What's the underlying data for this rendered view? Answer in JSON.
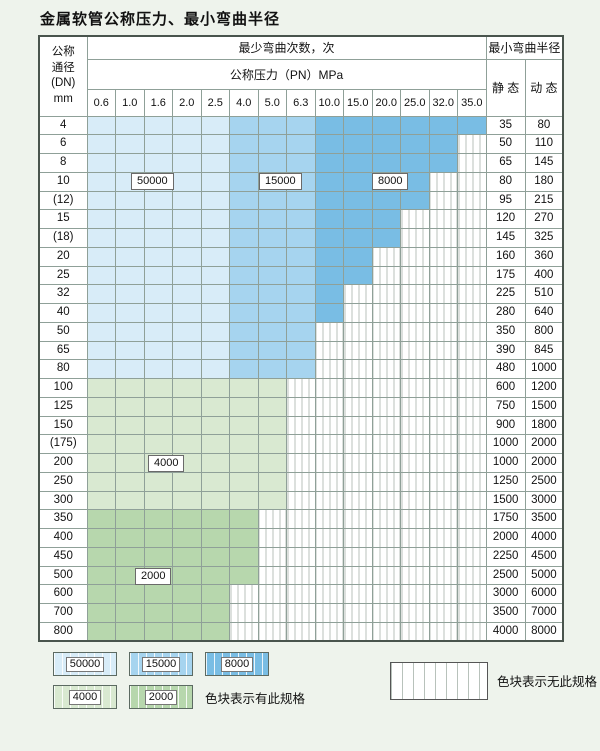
{
  "title": "金属软管公称压力、最小弯曲半径",
  "header": {
    "dn_lines": [
      "公称",
      "通径",
      "(DN)",
      "mm"
    ],
    "bend_times_label": "最少弯曲次数，次",
    "pn_label": "公称压力（PN）MPa",
    "radius_label": "最小弯曲半径",
    "static_label": "静 态",
    "dynamic_label": "动 态"
  },
  "chart_data": {
    "type": "table",
    "pressures": [
      "0.6",
      "1.0",
      "1.6",
      "2.0",
      "2.5",
      "4.0",
      "5.0",
      "6.3",
      "10.0",
      "15.0",
      "20.0",
      "25.0",
      "32.0",
      "35.0"
    ],
    "zone_colors": {
      "50000": "#d8ecf8",
      "15000": "#a6d4ef",
      "8000": "#79bde4",
      "4000": "#d9e9d1",
      "2000": "#b7d7ad"
    },
    "blue_column_zones": [
      {
        "zone": "50000",
        "from_col": 0,
        "to_col": 4
      },
      {
        "zone": "15000",
        "from_col": 5,
        "to_col": 7
      },
      {
        "zone": "8000",
        "from_col": 8,
        "to_col": 13
      }
    ],
    "zone_labels": [
      {
        "text": "50000",
        "anchor_row": "10",
        "anchor_col": "1.6"
      },
      {
        "text": "15000",
        "anchor_row": "10",
        "anchor_col": "5.0"
      },
      {
        "text": "8000",
        "anchor_row": "10",
        "anchor_col": "15.0"
      },
      {
        "text": "4000",
        "anchor_row": "200",
        "anchor_col": "1.6"
      },
      {
        "text": "2000",
        "anchor_row": "500",
        "anchor_col": "1.6"
      }
    ],
    "rows": [
      {
        "dn": "4",
        "band": "blue",
        "colored_cols": 14,
        "static": "35",
        "dynamic": "80"
      },
      {
        "dn": "6",
        "band": "blue",
        "colored_cols": 13,
        "static": "50",
        "dynamic": "110"
      },
      {
        "dn": "8",
        "band": "blue",
        "colored_cols": 13,
        "static": "65",
        "dynamic": "145"
      },
      {
        "dn": "10",
        "band": "blue",
        "colored_cols": 12,
        "static": "80",
        "dynamic": "180"
      },
      {
        "dn": "(12)",
        "band": "blue",
        "colored_cols": 12,
        "static": "95",
        "dynamic": "215"
      },
      {
        "dn": "15",
        "band": "blue",
        "colored_cols": 11,
        "static": "120",
        "dynamic": "270"
      },
      {
        "dn": "(18)",
        "band": "blue",
        "colored_cols": 11,
        "static": "145",
        "dynamic": "325"
      },
      {
        "dn": "20",
        "band": "blue",
        "colored_cols": 10,
        "static": "160",
        "dynamic": "360"
      },
      {
        "dn": "25",
        "band": "blue",
        "colored_cols": 10,
        "static": "175",
        "dynamic": "400"
      },
      {
        "dn": "32",
        "band": "blue",
        "colored_cols": 9,
        "static": "225",
        "dynamic": "510"
      },
      {
        "dn": "40",
        "band": "blue",
        "colored_cols": 9,
        "static": "280",
        "dynamic": "640"
      },
      {
        "dn": "50",
        "band": "blue",
        "colored_cols": 8,
        "static": "350",
        "dynamic": "800"
      },
      {
        "dn": "65",
        "band": "blue",
        "colored_cols": 8,
        "static": "390",
        "dynamic": "845"
      },
      {
        "dn": "80",
        "band": "blue",
        "colored_cols": 8,
        "static": "480",
        "dynamic": "1000"
      },
      {
        "dn": "100",
        "band": "4000",
        "colored_cols": 7,
        "static": "600",
        "dynamic": "1200"
      },
      {
        "dn": "125",
        "band": "4000",
        "colored_cols": 7,
        "static": "750",
        "dynamic": "1500"
      },
      {
        "dn": "150",
        "band": "4000",
        "colored_cols": 7,
        "static": "900",
        "dynamic": "1800"
      },
      {
        "dn": "(175)",
        "band": "4000",
        "colored_cols": 7,
        "static": "1000",
        "dynamic": "2000"
      },
      {
        "dn": "200",
        "band": "4000",
        "colored_cols": 7,
        "static": "1000",
        "dynamic": "2000"
      },
      {
        "dn": "250",
        "band": "4000",
        "colored_cols": 7,
        "static": "1250",
        "dynamic": "2500"
      },
      {
        "dn": "300",
        "band": "4000",
        "colored_cols": 7,
        "static": "1500",
        "dynamic": "3000"
      },
      {
        "dn": "350",
        "band": "2000",
        "colored_cols": 6,
        "static": "1750",
        "dynamic": "3500"
      },
      {
        "dn": "400",
        "band": "2000",
        "colored_cols": 6,
        "static": "2000",
        "dynamic": "4000"
      },
      {
        "dn": "450",
        "band": "2000",
        "colored_cols": 6,
        "static": "2250",
        "dynamic": "4500"
      },
      {
        "dn": "500",
        "band": "2000",
        "colored_cols": 6,
        "static": "2500",
        "dynamic": "5000"
      },
      {
        "dn": "600",
        "band": "2000",
        "colored_cols": 5,
        "static": "3000",
        "dynamic": "6000"
      },
      {
        "dn": "700",
        "band": "2000",
        "colored_cols": 5,
        "static": "3500",
        "dynamic": "7000"
      },
      {
        "dn": "800",
        "band": "2000",
        "colored_cols": 5,
        "static": "4000",
        "dynamic": "8000"
      }
    ]
  },
  "legend": {
    "available_items": [
      {
        "label": "50000",
        "zone": "50000"
      },
      {
        "label": "15000",
        "zone": "15000"
      },
      {
        "label": "8000",
        "zone": "8000"
      },
      {
        "label": "4000",
        "zone": "4000"
      },
      {
        "label": "2000",
        "zone": "2000"
      }
    ],
    "available_note": "色块表示有此规格",
    "unavailable_note": "色块表示无此规格"
  }
}
